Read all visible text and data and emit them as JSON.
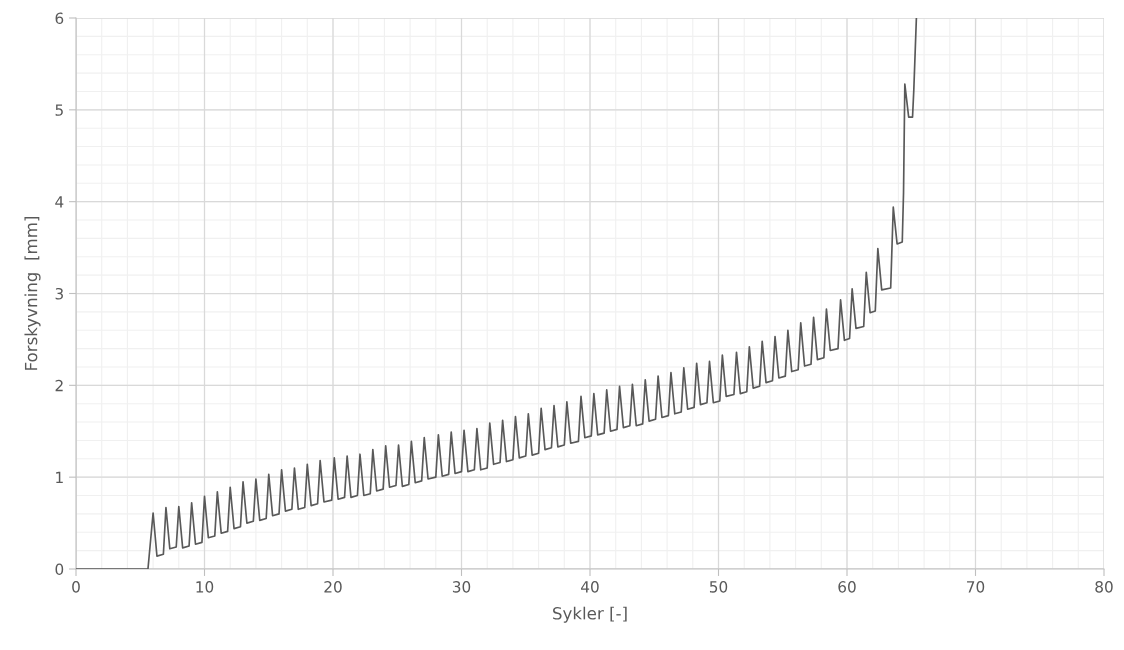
{
  "chart_data": {
    "type": "line",
    "xlabel": "Sykler [-]",
    "ylabel": "Forskyvning  [mm]",
    "xlim": [
      0,
      80
    ],
    "xticks": [
      0,
      10,
      20,
      30,
      40,
      50,
      60,
      70,
      80
    ],
    "ylim": [
      0,
      6
    ],
    "yticks": [
      0,
      1,
      2,
      3,
      4,
      5,
      6
    ],
    "grid": true,
    "marker": "none",
    "line_style": "solid",
    "series": [
      {
        "color": "#595959",
        "x": [
          0,
          5.6,
          6.0,
          6.3,
          6.8,
          7.0,
          7.3,
          7.8,
          8.0,
          8.3,
          8.8,
          9.0,
          9.3,
          9.8,
          10.0,
          10.3,
          10.8,
          11.0,
          11.3,
          11.8,
          12.0,
          12.3,
          12.8,
          13.0,
          13.3,
          13.8,
          14.0,
          14.3,
          14.8,
          15.0,
          15.3,
          15.8,
          16.0,
          16.3,
          16.8,
          17.0,
          17.3,
          17.8,
          18.0,
          18.3,
          18.8,
          19.0,
          19.3,
          19.9,
          20.1,
          20.4,
          20.9,
          21.1,
          21.4,
          21.9,
          22.1,
          22.4,
          22.9,
          23.1,
          23.4,
          23.9,
          24.1,
          24.4,
          24.9,
          25.1,
          25.4,
          25.9,
          26.1,
          26.4,
          26.9,
          27.1,
          27.4,
          28.0,
          28.2,
          28.5,
          29.0,
          29.2,
          29.5,
          30.0,
          30.2,
          30.5,
          31.0,
          31.2,
          31.5,
          32.0,
          32.2,
          32.5,
          33.0,
          33.2,
          33.5,
          34.0,
          34.2,
          34.5,
          35.0,
          35.2,
          35.5,
          36.0,
          36.2,
          36.5,
          37.0,
          37.2,
          37.5,
          38.0,
          38.2,
          38.5,
          39.1,
          39.3,
          39.6,
          40.1,
          40.3,
          40.6,
          41.1,
          41.3,
          41.6,
          42.1,
          42.3,
          42.6,
          43.1,
          43.3,
          43.6,
          44.1,
          44.3,
          44.6,
          45.1,
          45.3,
          45.6,
          46.1,
          46.3,
          46.6,
          47.1,
          47.3,
          47.6,
          48.1,
          48.3,
          48.6,
          49.1,
          49.3,
          49.6,
          50.1,
          50.3,
          50.6,
          51.2,
          51.4,
          51.7,
          52.2,
          52.4,
          52.7,
          53.2,
          53.4,
          53.7,
          54.2,
          54.4,
          54.7,
          55.2,
          55.4,
          55.7,
          56.2,
          56.4,
          56.7,
          57.2,
          57.4,
          57.7,
          58.2,
          58.4,
          58.7,
          59.3,
          59.5,
          59.8,
          60.2,
          60.4,
          60.7,
          61.3,
          61.5,
          61.8,
          62.2,
          62.4,
          62.7,
          63.4,
          63.6,
          63.9,
          64.3,
          64.4,
          64.5,
          64.8,
          65.1,
          65.2,
          65.4
        ],
        "values": [
          0,
          0,
          0.61,
          0.14,
          0.16,
          0.67,
          0.22,
          0.24,
          0.68,
          0.23,
          0.25,
          0.72,
          0.27,
          0.29,
          0.79,
          0.34,
          0.36,
          0.84,
          0.39,
          0.41,
          0.89,
          0.44,
          0.46,
          0.95,
          0.5,
          0.52,
          0.98,
          0.53,
          0.55,
          1.03,
          0.58,
          0.6,
          1.08,
          0.63,
          0.65,
          1.1,
          0.65,
          0.67,
          1.14,
          0.69,
          0.71,
          1.18,
          0.73,
          0.75,
          1.21,
          0.76,
          0.78,
          1.23,
          0.78,
          0.8,
          1.25,
          0.8,
          0.82,
          1.3,
          0.85,
          0.87,
          1.34,
          0.89,
          0.91,
          1.35,
          0.9,
          0.92,
          1.39,
          0.94,
          0.96,
          1.43,
          0.98,
          1.0,
          1.46,
          1.01,
          1.03,
          1.49,
          1.04,
          1.06,
          1.51,
          1.06,
          1.08,
          1.53,
          1.08,
          1.1,
          1.59,
          1.14,
          1.16,
          1.62,
          1.17,
          1.19,
          1.66,
          1.21,
          1.23,
          1.69,
          1.24,
          1.26,
          1.75,
          1.3,
          1.32,
          1.78,
          1.33,
          1.35,
          1.82,
          1.37,
          1.39,
          1.88,
          1.43,
          1.45,
          1.91,
          1.46,
          1.48,
          1.95,
          1.5,
          1.52,
          1.99,
          1.54,
          1.56,
          2.01,
          1.56,
          1.58,
          2.06,
          1.61,
          1.63,
          2.1,
          1.65,
          1.67,
          2.14,
          1.69,
          1.71,
          2.19,
          1.74,
          1.76,
          2.24,
          1.79,
          1.81,
          2.26,
          1.81,
          1.83,
          2.33,
          1.88,
          1.9,
          2.36,
          1.91,
          1.93,
          2.42,
          1.97,
          1.99,
          2.48,
          2.03,
          2.05,
          2.53,
          2.08,
          2.1,
          2.6,
          2.15,
          2.17,
          2.68,
          2.21,
          2.23,
          2.74,
          2.28,
          2.3,
          2.83,
          2.38,
          2.4,
          2.93,
          2.49,
          2.51,
          3.05,
          2.62,
          2.64,
          3.23,
          2.79,
          2.81,
          3.49,
          3.04,
          3.06,
          3.94,
          3.54,
          3.56,
          4.1,
          5.28,
          4.92,
          4.92,
          5.22,
          6.0
        ]
      }
    ]
  }
}
